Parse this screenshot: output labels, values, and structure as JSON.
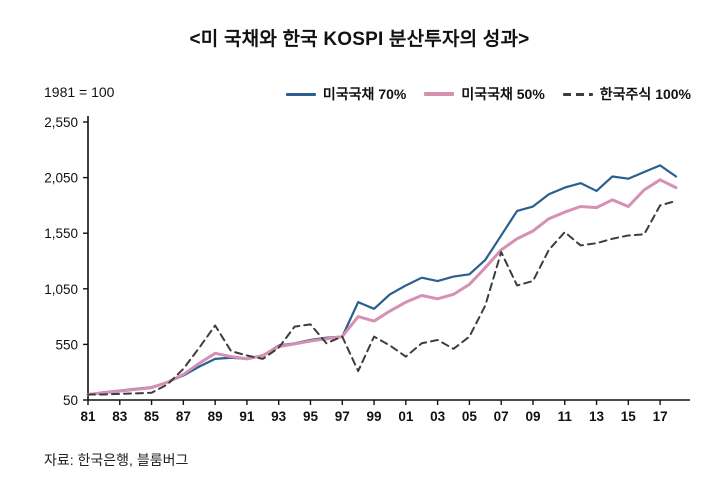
{
  "chart_data": {
    "type": "line",
    "title": "<미 국채와 한국 KOSPI 분산투자의 성과>",
    "index_note": "1981 = 100",
    "source": "자료: 한국은행, 블룸버그",
    "xlabel": "",
    "ylabel": "",
    "ylim": [
      50,
      2550
    ],
    "y_ticks": [
      50,
      550,
      1050,
      1550,
      2050,
      2550
    ],
    "y_tick_labels": [
      "50",
      "550",
      "1,050",
      "1,550",
      "2,050",
      "2,550"
    ],
    "x_tick_labels": [
      "81",
      "83",
      "85",
      "87",
      "89",
      "91",
      "93",
      "95",
      "97",
      "99",
      "01",
      "03",
      "05",
      "07",
      "09",
      "11",
      "13",
      "15",
      "17"
    ],
    "x_tick_years": [
      1981,
      1983,
      1985,
      1987,
      1989,
      1991,
      1993,
      1995,
      1997,
      1999,
      2001,
      2003,
      2005,
      2007,
      2009,
      2011,
      2013,
      2015,
      2017
    ],
    "x_range": [
      1981,
      2018
    ],
    "grid": false,
    "legend_position": "top-right",
    "years": [
      1981,
      1982,
      1983,
      1984,
      1985,
      1986,
      1987,
      1988,
      1989,
      1990,
      1991,
      1992,
      1993,
      1994,
      1995,
      1996,
      1997,
      1998,
      1999,
      2000,
      2001,
      2002,
      2003,
      2004,
      2005,
      2006,
      2007,
      2008,
      2009,
      2010,
      2011,
      2012,
      2013,
      2014,
      2015,
      2016,
      2017,
      2018
    ],
    "series": [
      {
        "name": "미국국채 70%",
        "color": "#2a5f8f",
        "dash": false,
        "width": 2.2,
        "values": [
          100,
          120,
          135,
          150,
          165,
          210,
          270,
          350,
          420,
          430,
          420,
          450,
          540,
          560,
          590,
          610,
          620,
          930,
          870,
          1000,
          1080,
          1150,
          1120,
          1160,
          1180,
          1310,
          1530,
          1750,
          1790,
          1900,
          1960,
          2000,
          1930,
          2060,
          2040,
          2100,
          2160,
          2060
        ]
      },
      {
        "name": "미국국채 50%",
        "color": "#d590b2",
        "dash": false,
        "width": 3,
        "values": [
          100,
          115,
          130,
          145,
          160,
          210,
          280,
          380,
          470,
          440,
          420,
          450,
          530,
          555,
          580,
          600,
          620,
          800,
          760,
          850,
          930,
          990,
          960,
          1000,
          1090,
          1240,
          1400,
          1500,
          1570,
          1680,
          1740,
          1790,
          1780,
          1850,
          1790,
          1940,
          2030,
          1960
        ]
      },
      {
        "name": "한국주식 100%",
        "color": "#3d3d3d",
        "dash": true,
        "width": 2,
        "values": [
          100,
          100,
          105,
          110,
          115,
          190,
          330,
          520,
          720,
          490,
          450,
          420,
          520,
          710,
          730,
          560,
          620,
          310,
          620,
          540,
          440,
          560,
          590,
          510,
          620,
          900,
          1380,
          1080,
          1120,
          1400,
          1560,
          1440,
          1460,
          1500,
          1530,
          1540,
          1800,
          1840
        ]
      }
    ]
  }
}
